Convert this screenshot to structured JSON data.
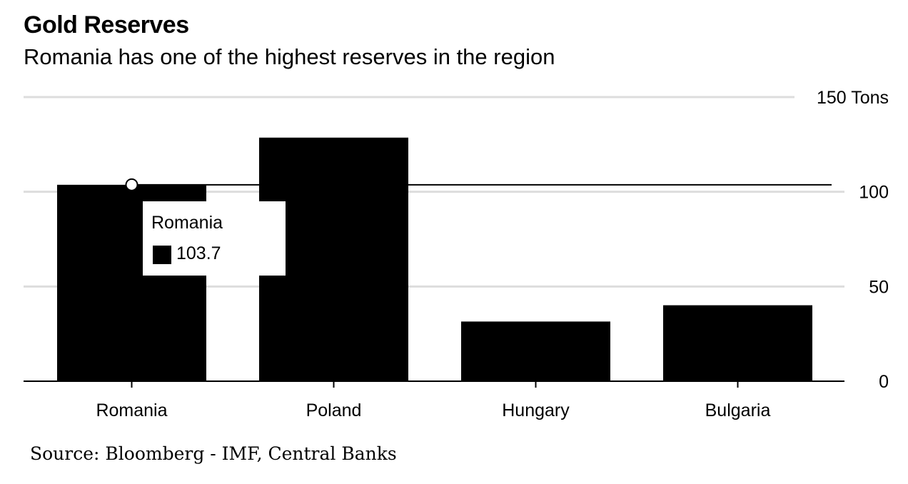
{
  "header": {
    "title": "Gold Reserves",
    "subtitle": "Romania has one of the highest reserves in the region"
  },
  "source": "Source: Bloomberg - IMF, Central Banks",
  "tooltip": {
    "name": "Romania",
    "value": "103.7"
  },
  "colors": {
    "bar": "#000000",
    "grid": "#dddddd",
    "text": "#000000"
  },
  "chart_data": {
    "type": "bar",
    "categories": [
      "Romania",
      "Poland",
      "Hungary",
      "Bulgaria"
    ],
    "values": [
      103.7,
      128.6,
      31.5,
      40.1
    ],
    "ylim": [
      0,
      150
    ],
    "yticks": [
      0,
      50,
      100,
      150
    ],
    "ytick_labels": [
      "0",
      "50",
      "100",
      "150 Tons"
    ],
    "reference_line": 103.7,
    "highlight_category": "Romania",
    "grid": true
  }
}
